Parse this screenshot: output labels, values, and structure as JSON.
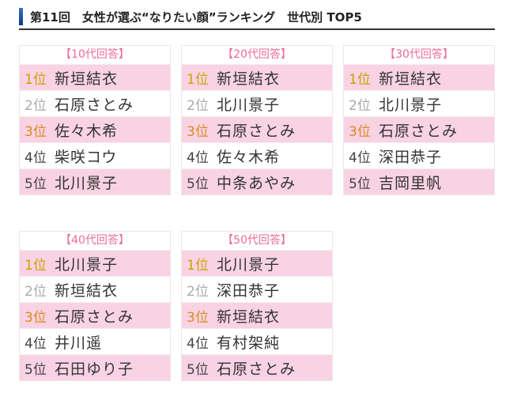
{
  "title": "第11回　女性が選ぶ“なりたい顔”ランキング　世代別 TOP5",
  "rank_colors": {
    "1": "#c9a400",
    "2": "#aaaaaa",
    "3": "#d98a1e",
    "4": "#444444",
    "5": "#444444"
  },
  "highlight_color": "#f9d3e3",
  "tables": [
    {
      "header": "【10代回答】",
      "rows": [
        {
          "rank": "1位",
          "name": "新垣結衣"
        },
        {
          "rank": "2位",
          "name": "石原さとみ"
        },
        {
          "rank": "3位",
          "name": "佐々木希"
        },
        {
          "rank": "4位",
          "name": "柴咲コウ"
        },
        {
          "rank": "5位",
          "name": "北川景子"
        }
      ]
    },
    {
      "header": "【20代回答】",
      "rows": [
        {
          "rank": "1位",
          "name": "新垣結衣"
        },
        {
          "rank": "2位",
          "name": "北川景子"
        },
        {
          "rank": "3位",
          "name": "石原さとみ"
        },
        {
          "rank": "4位",
          "name": "佐々木希"
        },
        {
          "rank": "5位",
          "name": "中条あやみ"
        }
      ]
    },
    {
      "header": "【30代回答】",
      "rows": [
        {
          "rank": "1位",
          "name": "新垣結衣"
        },
        {
          "rank": "2位",
          "name": "北川景子"
        },
        {
          "rank": "3位",
          "name": "石原さとみ"
        },
        {
          "rank": "4位",
          "name": "深田恭子"
        },
        {
          "rank": "5位",
          "name": "吉岡里帆"
        }
      ]
    },
    {
      "header": "【40代回答】",
      "rows": [
        {
          "rank": "1位",
          "name": "北川景子"
        },
        {
          "rank": "2位",
          "name": "新垣結衣"
        },
        {
          "rank": "3位",
          "name": "石原さとみ"
        },
        {
          "rank": "4位",
          "name": "井川遥"
        },
        {
          "rank": "5位",
          "name": "石田ゆり子"
        }
      ]
    },
    {
      "header": "【50代回答】",
      "rows": [
        {
          "rank": "1位",
          "name": "北川景子"
        },
        {
          "rank": "2位",
          "name": "深田恭子"
        },
        {
          "rank": "3位",
          "name": "新垣結衣"
        },
        {
          "rank": "4位",
          "name": "有村架純"
        },
        {
          "rank": "5位",
          "name": "石原さとみ"
        }
      ]
    }
  ]
}
